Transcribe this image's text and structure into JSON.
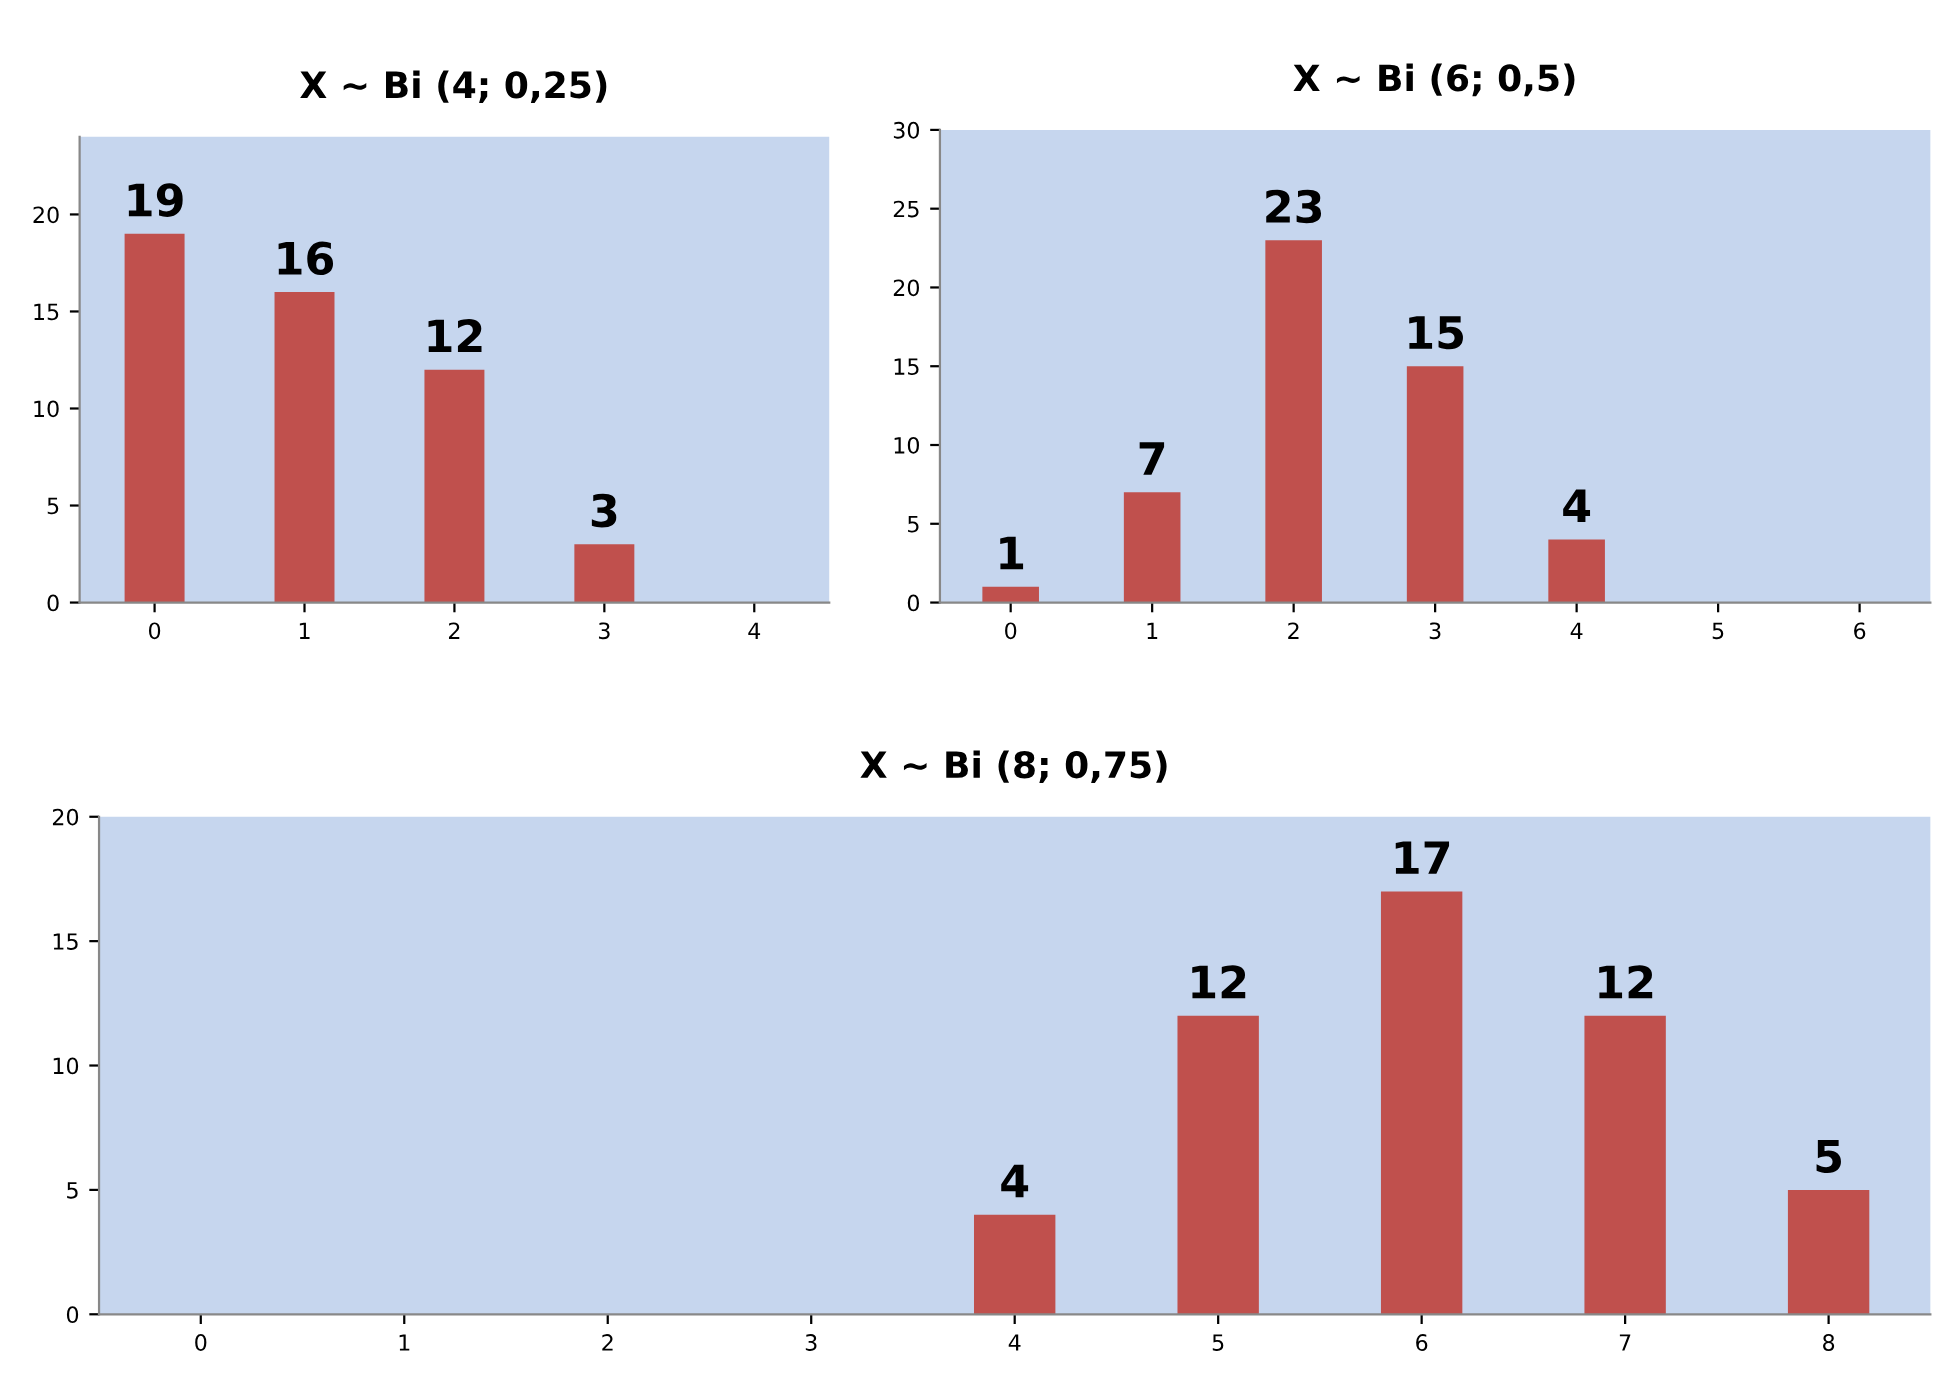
{
  "chart_data": [
    {
      "type": "bar",
      "title": "X ~ Bi (4; 0,25)",
      "categories": [
        "0",
        "1",
        "2",
        "3",
        "4"
      ],
      "values": [
        19,
        16,
        12,
        3,
        null
      ],
      "color": "#c0504d",
      "ylim": [
        0,
        24
      ],
      "yticks": [
        0,
        5,
        10,
        15,
        20
      ],
      "data_labels": true,
      "grid": false,
      "legend": false
    },
    {
      "type": "bar",
      "title": "X ~ Bi (6; 0,5)",
      "categories": [
        "0",
        "1",
        "2",
        "3",
        "4",
        "5",
        "6"
      ],
      "values": [
        1,
        7,
        23,
        15,
        4,
        null,
        null
      ],
      "color": "#c0504d",
      "ylim": [
        0,
        30
      ],
      "yticks": [
        0,
        5,
        10,
        15,
        20,
        25,
        30
      ],
      "data_labels": true,
      "grid": false,
      "legend": false
    },
    {
      "type": "bar",
      "title": "X ~ Bi (8; 0,75)",
      "categories": [
        "0",
        "1",
        "2",
        "3",
        "4",
        "5",
        "6",
        "7",
        "8"
      ],
      "values": [
        null,
        null,
        null,
        null,
        4,
        12,
        17,
        12,
        5
      ],
      "color": "#c0504d",
      "ylim": [
        0,
        20
      ],
      "yticks": [
        0,
        5,
        10,
        15,
        20
      ],
      "data_labels": true,
      "grid": false,
      "legend": false
    }
  ]
}
